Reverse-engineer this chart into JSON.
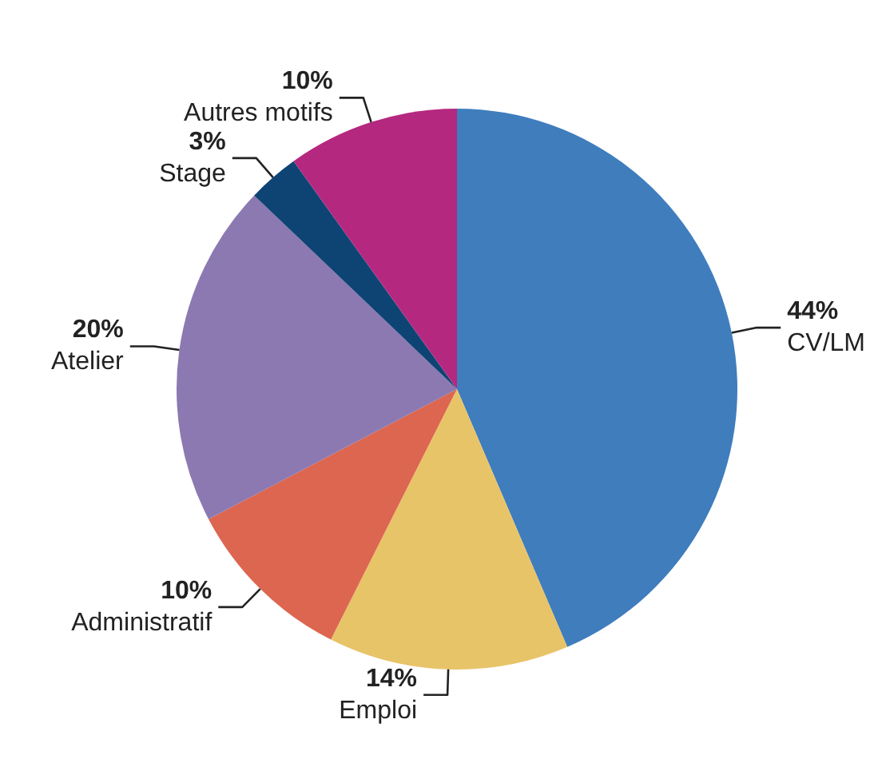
{
  "chart_data": {
    "type": "pie",
    "categories": [
      "CV/LM",
      "Emploi",
      "Administratif",
      "Atelier",
      "Stage",
      "Autres motifs"
    ],
    "values": [
      44,
      14,
      10,
      20,
      3,
      10
    ],
    "value_labels": [
      "44%",
      "14%",
      "10%",
      "20%",
      "3%",
      "10%"
    ],
    "colors": [
      "#3f7dbd",
      "#e8c468",
      "#dc6650",
      "#8c79b1",
      "#0e4474",
      "#b5287f"
    ],
    "legend": false
  }
}
